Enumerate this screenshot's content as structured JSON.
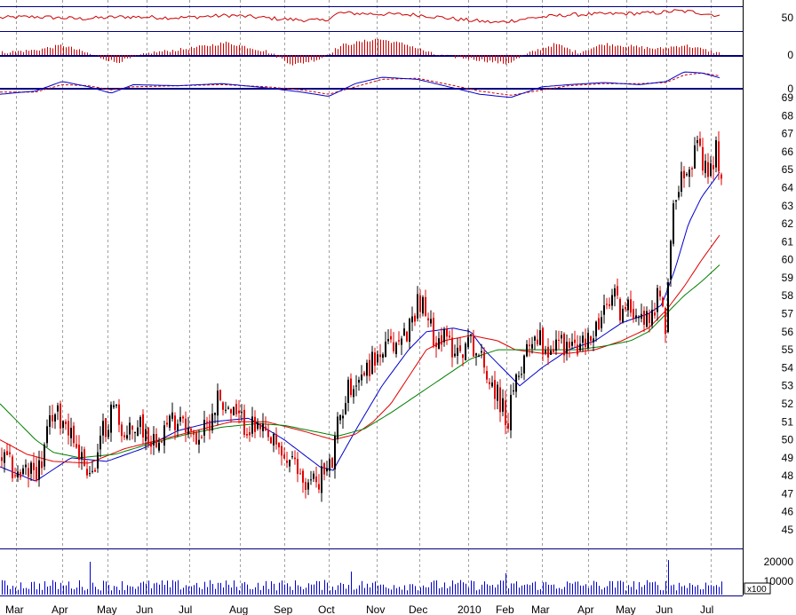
{
  "chart_data": {
    "type": "candlestick",
    "colors": {
      "up_candle": "#000000",
      "down_candle": "#e00000",
      "ma_short": "#0000cc",
      "ma_mid": "#e00000",
      "ma_long": "#008000",
      "rsi_line": "#cc0000",
      "histogram": "#cc0000",
      "macd_line": "#0000cc",
      "signal_line": "#cc0000",
      "volume_bars": "#0000cc",
      "panel_lines": "#000080",
      "grid": "#a0a0a0"
    },
    "x_labels": [
      "Mar",
      "Apr",
      "May",
      "Jun",
      "Jul",
      "Aug",
      "Sep",
      "Oct",
      "Nov",
      "Dec",
      "2010",
      "Feb",
      "Mar",
      "Apr",
      "May",
      "Jun",
      "Jul"
    ],
    "price_panel": {
      "y_ticks": [
        45,
        46,
        47,
        48,
        49,
        50,
        51,
        52,
        53,
        54,
        55,
        56,
        57,
        58,
        59,
        60,
        61,
        62,
        63,
        64,
        65,
        66,
        67,
        68,
        69
      ],
      "ylim": [
        44.5,
        69.5
      ],
      "anchors": [
        [
          0,
          49
        ],
        [
          20,
          48
        ],
        [
          45,
          48.5
        ],
        [
          58,
          51.5
        ],
        [
          75,
          51
        ],
        [
          90,
          49
        ],
        [
          105,
          48
        ],
        [
          115,
          50.5
        ],
        [
          128,
          52
        ],
        [
          140,
          50
        ],
        [
          155,
          51
        ],
        [
          170,
          50
        ],
        [
          190,
          51
        ],
        [
          205,
          51.5
        ],
        [
          215,
          50
        ],
        [
          230,
          50.5
        ],
        [
          245,
          52.5
        ],
        [
          258,
          51.5
        ],
        [
          270,
          51
        ],
        [
          290,
          50.5
        ],
        [
          310,
          49.5
        ],
        [
          330,
          48.5
        ],
        [
          345,
          47.5
        ],
        [
          360,
          48
        ],
        [
          372,
          48.5
        ],
        [
          380,
          51
        ],
        [
          392,
          53
        ],
        [
          405,
          53.5
        ],
        [
          420,
          54.5
        ],
        [
          435,
          55
        ],
        [
          450,
          55.5
        ],
        [
          462,
          56.5
        ],
        [
          470,
          58
        ],
        [
          485,
          56
        ],
        [
          500,
          55.5
        ],
        [
          515,
          55
        ],
        [
          530,
          55.5
        ],
        [
          545,
          54
        ],
        [
          560,
          52.5
        ],
        [
          570,
          51
        ],
        [
          580,
          53
        ],
        [
          590,
          55
        ],
        [
          600,
          56
        ],
        [
          615,
          55
        ],
        [
          630,
          55.5
        ],
        [
          645,
          55
        ],
        [
          660,
          55.5
        ],
        [
          675,
          56.5
        ],
        [
          690,
          58
        ],
        [
          700,
          57
        ],
        [
          715,
          57.5
        ],
        [
          725,
          56.5
        ],
        [
          740,
          58
        ],
        [
          748,
          56.5
        ],
        [
          755,
          62
        ],
        [
          765,
          65
        ],
        [
          775,
          65.5
        ],
        [
          785,
          66
        ],
        [
          795,
          64.5
        ],
        [
          805,
          66
        ],
        [
          812,
          65
        ]
      ],
      "last_close": 64.5,
      "moving_averages": [
        {
          "period": "short",
          "anchors": [
            [
              0,
              48.5
            ],
            [
              40,
              47.7
            ],
            [
              80,
              49
            ],
            [
              120,
              48.8
            ],
            [
              160,
              49.5
            ],
            [
              200,
              50.5
            ],
            [
              240,
              51
            ],
            [
              280,
              51.2
            ],
            [
              320,
              50
            ],
            [
              360,
              48.5
            ],
            [
              375,
              48.3
            ],
            [
              400,
              50.5
            ],
            [
              430,
              53
            ],
            [
              460,
              55
            ],
            [
              480,
              56
            ],
            [
              510,
              56.2
            ],
            [
              530,
              56
            ],
            [
              545,
              55
            ],
            [
              565,
              54
            ],
            [
              585,
              53
            ],
            [
              610,
              54
            ],
            [
              640,
              55
            ],
            [
              670,
              55.5
            ],
            [
              700,
              56.5
            ],
            [
              730,
              57
            ],
            [
              745,
              57.5
            ],
            [
              760,
              59.5
            ],
            [
              775,
              62
            ],
            [
              790,
              63.5
            ],
            [
              805,
              64.5
            ],
            [
              812,
              65
            ]
          ]
        },
        {
          "period": "mid",
          "anchors": [
            [
              0,
              50
            ],
            [
              30,
              49.2
            ],
            [
              60,
              48.8
            ],
            [
              100,
              48.7
            ],
            [
              140,
              49.5
            ],
            [
              180,
              50
            ],
            [
              220,
              50.5
            ],
            [
              260,
              51
            ],
            [
              300,
              51
            ],
            [
              340,
              50.5
            ],
            [
              375,
              50
            ],
            [
              400,
              50.3
            ],
            [
              420,
              51
            ],
            [
              440,
              52
            ],
            [
              460,
              53.5
            ],
            [
              480,
              55
            ],
            [
              500,
              55.5
            ],
            [
              530,
              55.8
            ],
            [
              560,
              55.5
            ],
            [
              580,
              55
            ],
            [
              610,
              54.8
            ],
            [
              640,
              54.8
            ],
            [
              670,
              55
            ],
            [
              700,
              55.5
            ],
            [
              730,
              56.2
            ],
            [
              750,
              57.2
            ],
            [
              770,
              58.5
            ],
            [
              790,
              60
            ],
            [
              812,
              61.5
            ]
          ]
        },
        {
          "period": "long",
          "anchors": [
            [
              0,
              52
            ],
            [
              20,
              51
            ],
            [
              40,
              50
            ],
            [
              60,
              49.3
            ],
            [
              90,
              49
            ],
            [
              130,
              49.2
            ],
            [
              170,
              49.8
            ],
            [
              210,
              50.3
            ],
            [
              250,
              50.7
            ],
            [
              290,
              50.9
            ],
            [
              320,
              50.8
            ],
            [
              350,
              50.5
            ],
            [
              380,
              50.2
            ],
            [
              410,
              50.6
            ],
            [
              440,
              51.5
            ],
            [
              470,
              52.5
            ],
            [
              500,
              53.5
            ],
            [
              530,
              54.5
            ],
            [
              560,
              55
            ],
            [
              590,
              55
            ],
            [
              620,
              55
            ],
            [
              650,
              55
            ],
            [
              680,
              55.2
            ],
            [
              710,
              55.5
            ],
            [
              730,
              56
            ],
            [
              750,
              57
            ],
            [
              770,
              58
            ],
            [
              790,
              58.8
            ],
            [
              812,
              59.8
            ]
          ]
        }
      ]
    },
    "rsi_panel": {
      "y_ticks": [
        50
      ],
      "anchors": [
        [
          0,
          50
        ],
        [
          40,
          52
        ],
        [
          90,
          48
        ],
        [
          140,
          52
        ],
        [
          200,
          50
        ],
        [
          260,
          55
        ],
        [
          320,
          47
        ],
        [
          365,
          44
        ],
        [
          382,
          60
        ],
        [
          420,
          58
        ],
        [
          470,
          56
        ],
        [
          520,
          46
        ],
        [
          560,
          40
        ],
        [
          600,
          50
        ],
        [
          640,
          56
        ],
        [
          690,
          58
        ],
        [
          740,
          60
        ],
        [
          760,
          64
        ],
        [
          780,
          62
        ],
        [
          812,
          54
        ]
      ]
    },
    "histogram_panel": {
      "y_ticks": [
        0
      ],
      "anchors": [
        [
          0,
          0.2
        ],
        [
          40,
          0.4
        ],
        [
          70,
          0.8
        ],
        [
          100,
          0.1
        ],
        [
          130,
          -0.6
        ],
        [
          170,
          0.2
        ],
        [
          210,
          0.5
        ],
        [
          255,
          1
        ],
        [
          300,
          0.3
        ],
        [
          330,
          -0.8
        ],
        [
          360,
          -0.3
        ],
        [
          385,
          0.8
        ],
        [
          425,
          1.3
        ],
        [
          460,
          0.8
        ],
        [
          490,
          0
        ],
        [
          530,
          -0.3
        ],
        [
          570,
          -0.7
        ],
        [
          600,
          0.3
        ],
        [
          625,
          0.9
        ],
        [
          650,
          0.2
        ],
        [
          680,
          0.9
        ],
        [
          710,
          0.7
        ],
        [
          740,
          0.5
        ],
        [
          770,
          0.8
        ],
        [
          812,
          0.1
        ]
      ]
    },
    "macd_panel": {
      "y_ticks": [
        0
      ],
      "macd_anchors": [
        [
          0,
          -0.6
        ],
        [
          40,
          -0.3
        ],
        [
          70,
          0.6
        ],
        [
          100,
          0.1
        ],
        [
          125,
          -0.5
        ],
        [
          150,
          0.3
        ],
        [
          200,
          0.2
        ],
        [
          250,
          0.4
        ],
        [
          300,
          0
        ],
        [
          340,
          -0.4
        ],
        [
          370,
          -0.8
        ],
        [
          400,
          0.4
        ],
        [
          430,
          1
        ],
        [
          470,
          0.8
        ],
        [
          500,
          0.2
        ],
        [
          540,
          -0.6
        ],
        [
          575,
          -0.9
        ],
        [
          610,
          0.1
        ],
        [
          640,
          0.3
        ],
        [
          680,
          0.5
        ],
        [
          720,
          0.3
        ],
        [
          750,
          0.6
        ],
        [
          770,
          1.5
        ],
        [
          790,
          1.4
        ],
        [
          812,
          0.9
        ]
      ],
      "signal_anchors": [
        [
          0,
          -0.4
        ],
        [
          40,
          -0.4
        ],
        [
          70,
          0.3
        ],
        [
          100,
          0.2
        ],
        [
          125,
          -0.2
        ],
        [
          150,
          0.1
        ],
        [
          200,
          0.2
        ],
        [
          250,
          0.3
        ],
        [
          300,
          0.1
        ],
        [
          340,
          -0.2
        ],
        [
          370,
          -0.6
        ],
        [
          400,
          0.1
        ],
        [
          430,
          0.8
        ],
        [
          470,
          0.9
        ],
        [
          500,
          0.4
        ],
        [
          540,
          -0.3
        ],
        [
          575,
          -0.7
        ],
        [
          610,
          -0.2
        ],
        [
          640,
          0.2
        ],
        [
          680,
          0.4
        ],
        [
          720,
          0.4
        ],
        [
          750,
          0.5
        ],
        [
          770,
          1.2
        ],
        [
          790,
          1.4
        ],
        [
          812,
          1.1
        ]
      ]
    },
    "volume_panel": {
      "y_ticks": [
        "20000",
        "10000"
      ],
      "scale_label": "x100",
      "typical": 5000,
      "spikes": [
        [
          100,
          20000
        ],
        [
          395,
          14000
        ],
        [
          570,
          13000
        ],
        [
          752,
          21000
        ]
      ]
    }
  }
}
